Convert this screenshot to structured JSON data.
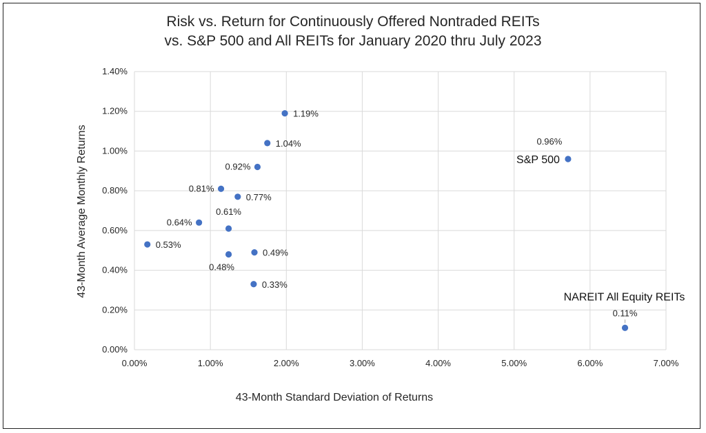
{
  "chart_data": {
    "type": "scatter",
    "title_line1": "Risk vs. Return for Continuously Offered Nontraded REITs",
    "title_line2": "vs. S&P 500 and All REITs for January 2020 thru July 2023",
    "xlabel": "43-Month Standard Deviation of Returns",
    "ylabel": "43-Month Average Monthly Returns",
    "xlim": [
      0,
      7
    ],
    "ylim": [
      0,
      1.4
    ],
    "x_ticks": [
      "0.00%",
      "1.00%",
      "2.00%",
      "3.00%",
      "4.00%",
      "5.00%",
      "6.00%",
      "7.00%"
    ],
    "y_ticks": [
      "0.00%",
      "0.20%",
      "0.40%",
      "0.60%",
      "0.80%",
      "1.00%",
      "1.20%",
      "1.40%"
    ],
    "grid": true,
    "marker_color": "#4472C4",
    "points": [
      {
        "x": 1.98,
        "y": 1.19,
        "label": "1.19%",
        "label_pos": "right"
      },
      {
        "x": 1.75,
        "y": 1.04,
        "label": "1.04%",
        "label_pos": "right"
      },
      {
        "x": 1.62,
        "y": 0.92,
        "label": "0.92%",
        "label_pos": "left"
      },
      {
        "x": 1.14,
        "y": 0.81,
        "label": "0.81%",
        "label_pos": "left"
      },
      {
        "x": 1.36,
        "y": 0.77,
        "label": "0.77%",
        "label_pos": "right"
      },
      {
        "x": 0.85,
        "y": 0.64,
        "label": "0.64%",
        "label_pos": "left"
      },
      {
        "x": 1.24,
        "y": 0.61,
        "label": "0.61%",
        "label_pos": "above"
      },
      {
        "x": 0.17,
        "y": 0.53,
        "label": "0.53%",
        "label_pos": "right"
      },
      {
        "x": 1.58,
        "y": 0.49,
        "label": "0.49%",
        "label_pos": "right"
      },
      {
        "x": 1.24,
        "y": 0.48,
        "label": "0.48%",
        "label_pos": "below"
      },
      {
        "x": 1.57,
        "y": 0.33,
        "label": "0.33%",
        "label_pos": "right"
      },
      {
        "x": 5.71,
        "y": 0.96,
        "label": "0.96%",
        "label_pos": "above",
        "name": "S&P 500",
        "name_pos": "left"
      },
      {
        "x": 6.46,
        "y": 0.11,
        "label": "0.11%",
        "label_pos": "above",
        "name": "NAREIT All Equity REITs",
        "name_pos": "above"
      }
    ]
  }
}
